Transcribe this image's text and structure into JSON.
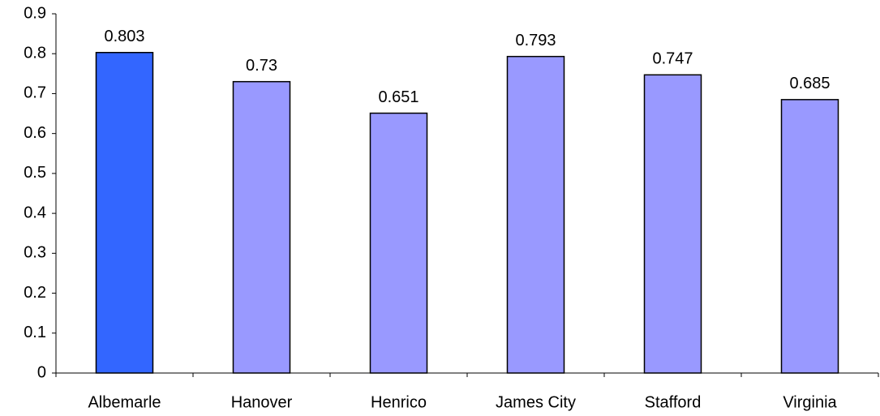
{
  "chart_data": {
    "type": "bar",
    "categories": [
      "Albemarle",
      "Hanover",
      "Henrico",
      "James City",
      "Stafford",
      "Virginia"
    ],
    "values": [
      0.803,
      0.73,
      0.651,
      0.793,
      0.747,
      0.685
    ],
    "colors": [
      "#3366ff",
      "#9999ff",
      "#9999ff",
      "#9999ff",
      "#9999ff",
      "#9999ff"
    ],
    "ylim": [
      0,
      0.9
    ],
    "yticks": [
      0,
      0.1,
      0.2,
      0.3,
      0.4,
      0.5,
      0.6,
      0.7,
      0.8,
      0.9
    ],
    "grid": false
  }
}
